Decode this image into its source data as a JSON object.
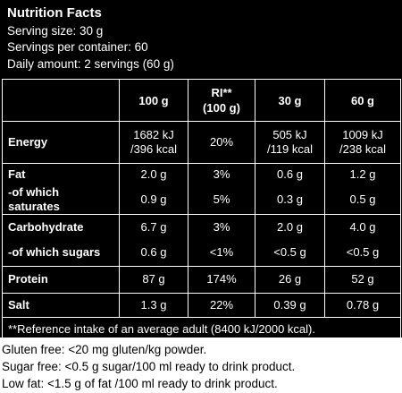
{
  "header": {
    "title": "Nutrition Facts",
    "lines": [
      "Serving size: 30 g",
      "Servings per container: 60",
      "Daily amount: 2 servings (60 g)"
    ]
  },
  "table": {
    "columns": [
      "",
      "100 g",
      "RI**\n(100 g)",
      "30 g",
      "60 g"
    ],
    "groups": [
      [
        [
          "Energy",
          "1682 kJ\n/396 kcal",
          "20%",
          "505 kJ\n/119 kcal",
          "1009 kJ\n/238 kcal"
        ]
      ],
      [
        [
          "Fat",
          "2.0 g",
          "3%",
          "0.6 g",
          "1.2 g"
        ],
        [
          "-of which saturates",
          "0.9 g",
          "5%",
          "0.3 g",
          "0.5 g"
        ]
      ],
      [
        [
          "Carbohydrate",
          "6.7 g",
          "3%",
          "2.0 g",
          "4.0 g"
        ],
        [
          "-of which sugars",
          "0.6 g",
          "<1%",
          "<0.5 g",
          "<0.5 g"
        ]
      ],
      [
        [
          "Protein",
          "87 g",
          "174%",
          "26 g",
          "52 g"
        ]
      ],
      [
        [
          "Salt",
          "1.3 g",
          "22%",
          "0.39 g",
          "0.78 g"
        ]
      ]
    ],
    "footnote": "**Reference intake of an average adult (8400 kJ/2000 kcal)."
  },
  "notes": [
    "Gluten free: <20 mg gluten/kg powder.",
    "Sugar free: <0.5 g sugar/100 ml ready to drink product.",
    "Low fat: <1.5 g of fat /100 ml ready to drink product."
  ]
}
